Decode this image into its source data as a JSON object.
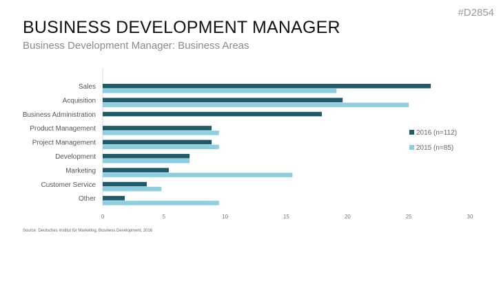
{
  "slide": {
    "code": "#D2854",
    "title": "BUSINESS DEVELOPMENT MANAGER",
    "subtitle": "Business Development Manager: Business Areas",
    "source": "Source: Deutsches Institut für Marketing, Business Development, 2016"
  },
  "chart_data": {
    "type": "bar",
    "orientation": "horizontal",
    "categories": [
      "Sales",
      "Acquisition",
      "Business Administration",
      "Product Management",
      "Project Management",
      "Development",
      "Marketing",
      "Customer Service",
      "Other"
    ],
    "series": [
      {
        "name": "2016 (n=112)",
        "color": "#1f5a68",
        "values": [
          26.8,
          19.6,
          17.9,
          8.9,
          8.9,
          7.1,
          5.4,
          3.6,
          1.8
        ]
      },
      {
        "name": "2015 (n=85)",
        "color": "#8ecfdf",
        "values": [
          19.1,
          25.0,
          null,
          9.5,
          9.5,
          7.1,
          15.5,
          4.8,
          9.5
        ]
      }
    ],
    "xlim": [
      0,
      30
    ],
    "xticks": [
      "0",
      "5",
      "10",
      "15",
      "20",
      "25",
      "30"
    ],
    "grid": false,
    "legend": "right"
  }
}
